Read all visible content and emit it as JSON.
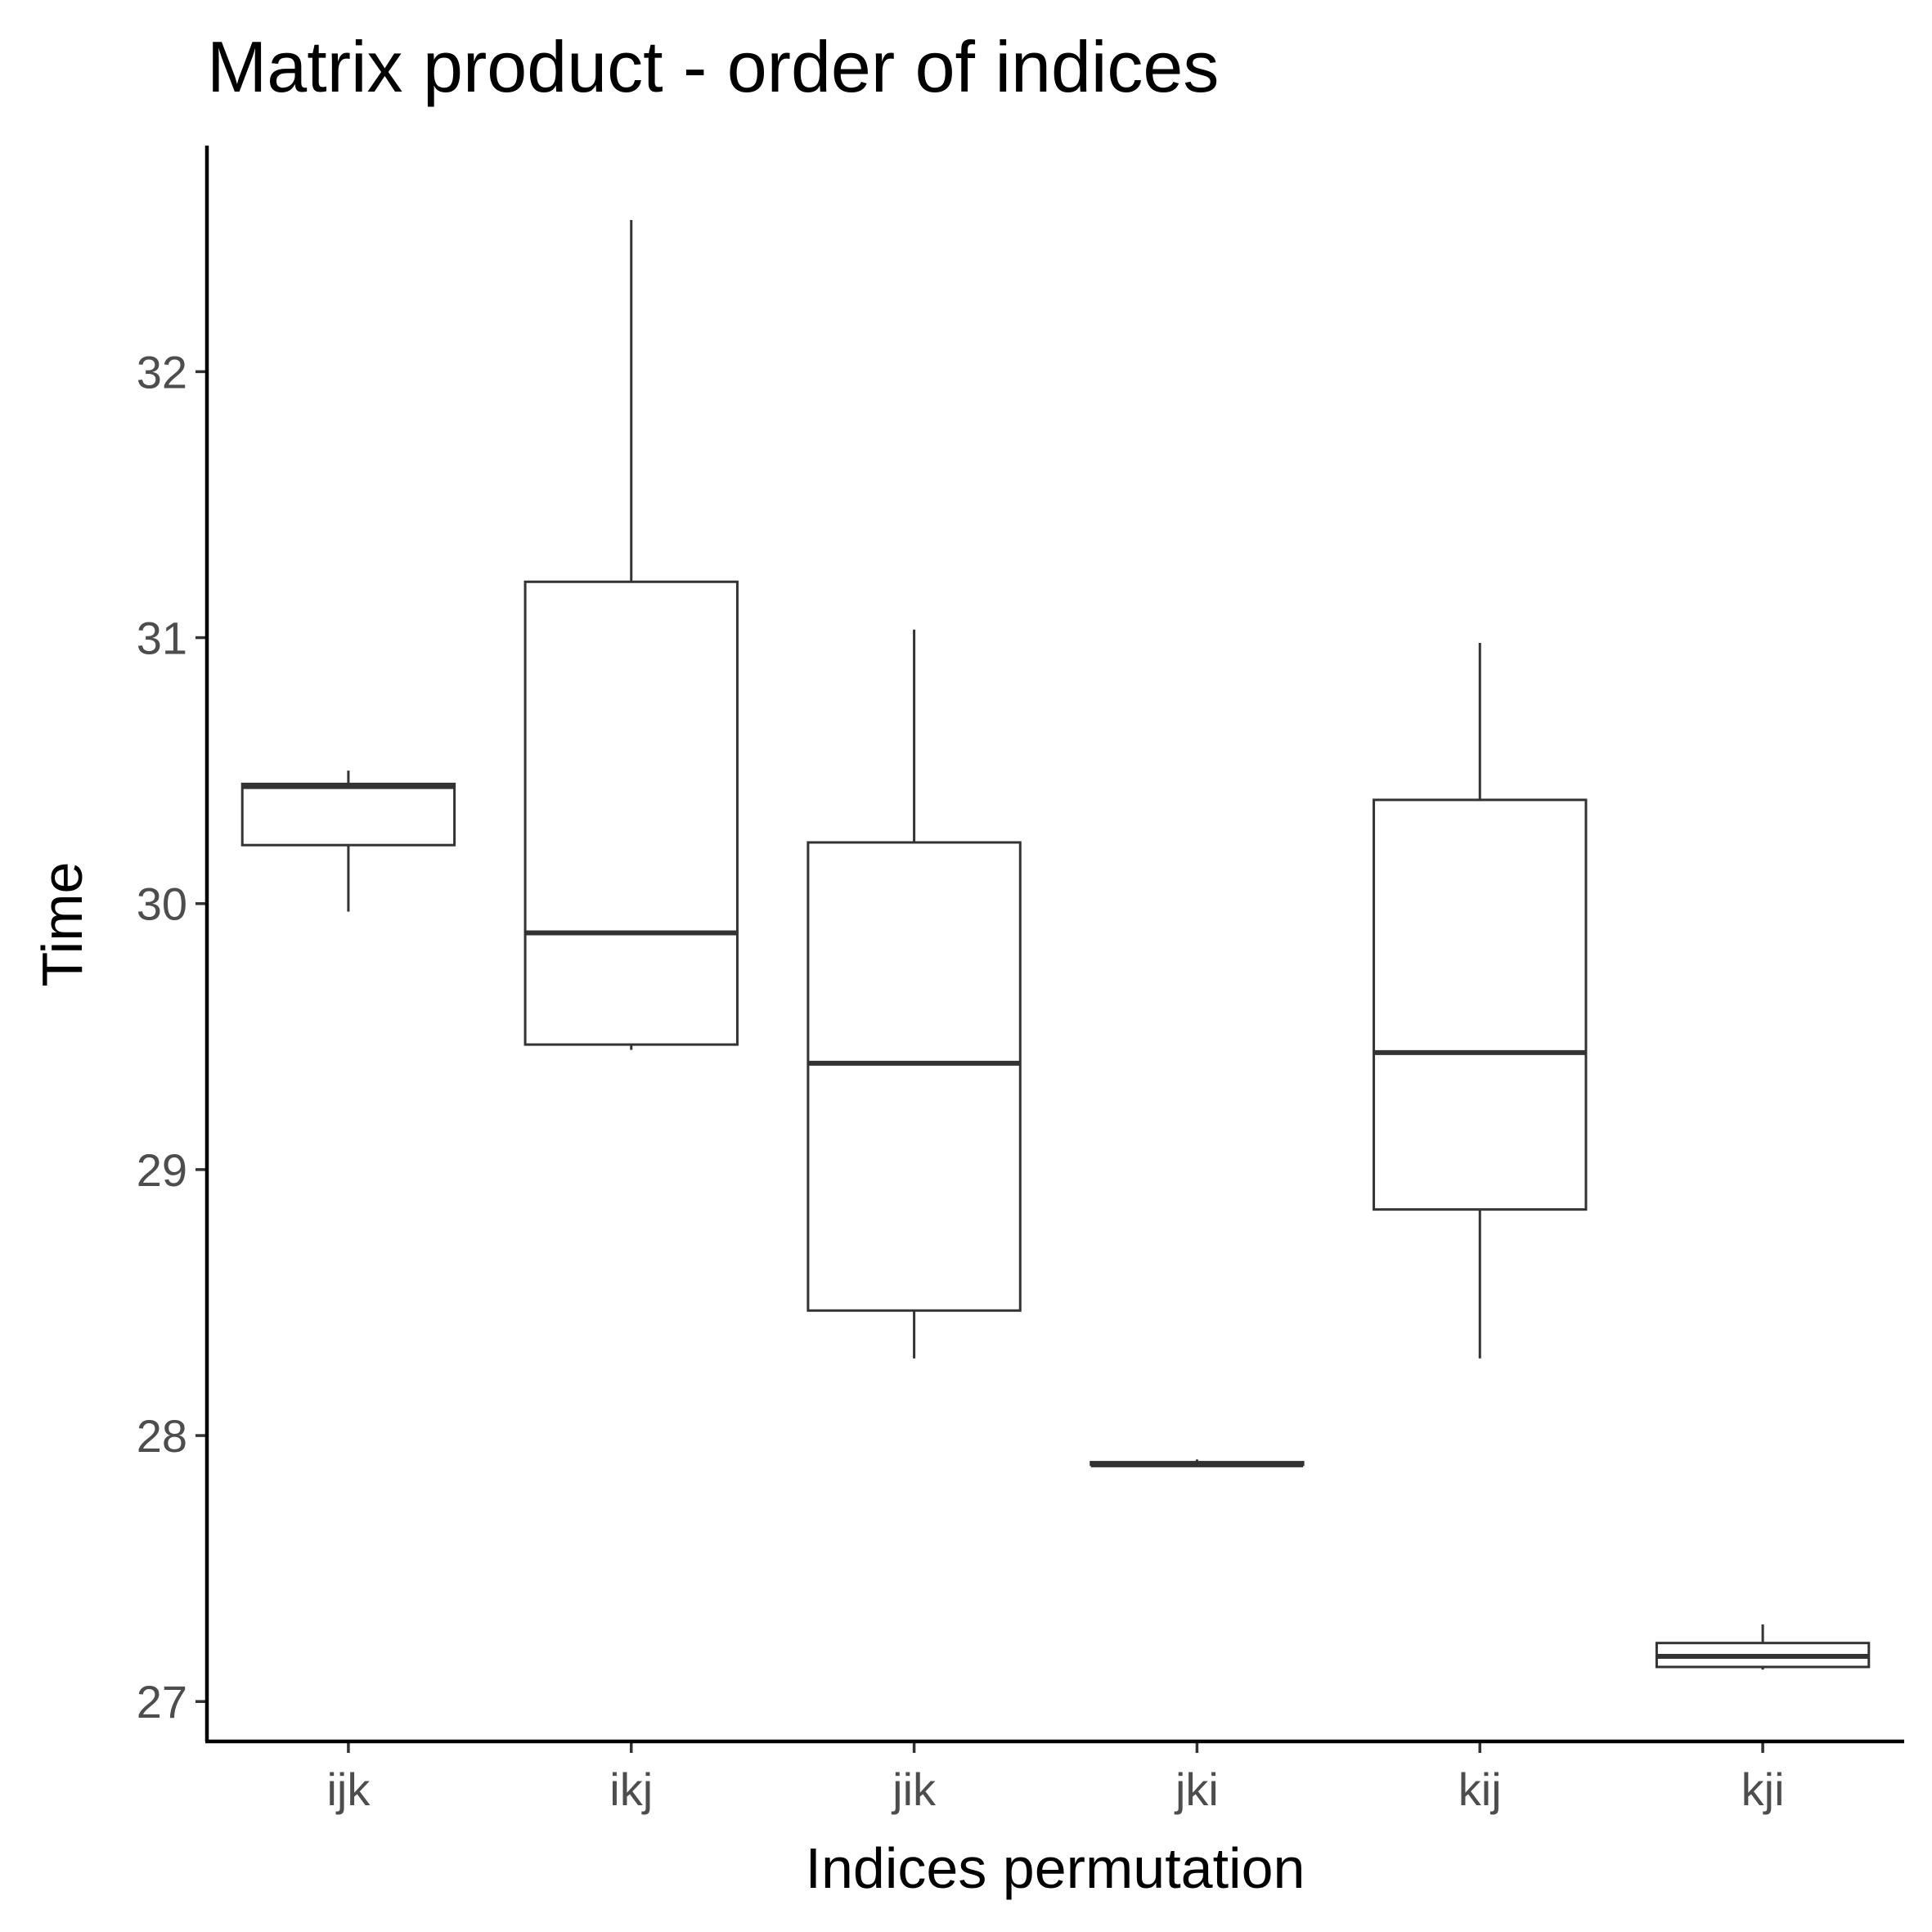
{
  "chart_data": {
    "type": "boxplot",
    "title": "Matrix product - order of indices",
    "xlabel": "Indices permutation",
    "ylabel": "Time",
    "categories": [
      "ijk",
      "ikj",
      "jik",
      "jki",
      "kij",
      "kji"
    ],
    "ylim": [
      26.85,
      32.85
    ],
    "yticks": [
      27,
      28,
      29,
      30,
      31,
      32
    ],
    "grid": false,
    "legend": "none",
    "boxes": [
      {
        "category": "ijk",
        "min": 29.97,
        "q1": 30.22,
        "median": 30.44,
        "q3": 30.45,
        "max": 30.5
      },
      {
        "category": "ikj",
        "min": 29.45,
        "q1": 29.47,
        "median": 29.89,
        "q3": 31.21,
        "max": 32.57
      },
      {
        "category": "jik",
        "min": 28.29,
        "q1": 28.47,
        "median": 29.4,
        "q3": 30.23,
        "max": 31.03
      },
      {
        "category": "jki",
        "min": 27.89,
        "q1": 27.89,
        "median": 27.89,
        "q3": 27.9,
        "max": 27.91
      },
      {
        "category": "kij",
        "min": 28.29,
        "q1": 28.85,
        "median": 29.44,
        "q3": 30.39,
        "max": 30.98
      },
      {
        "category": "kji",
        "min": 27.12,
        "q1": 27.13,
        "median": 27.17,
        "q3": 27.22,
        "max": 27.29
      }
    ]
  }
}
